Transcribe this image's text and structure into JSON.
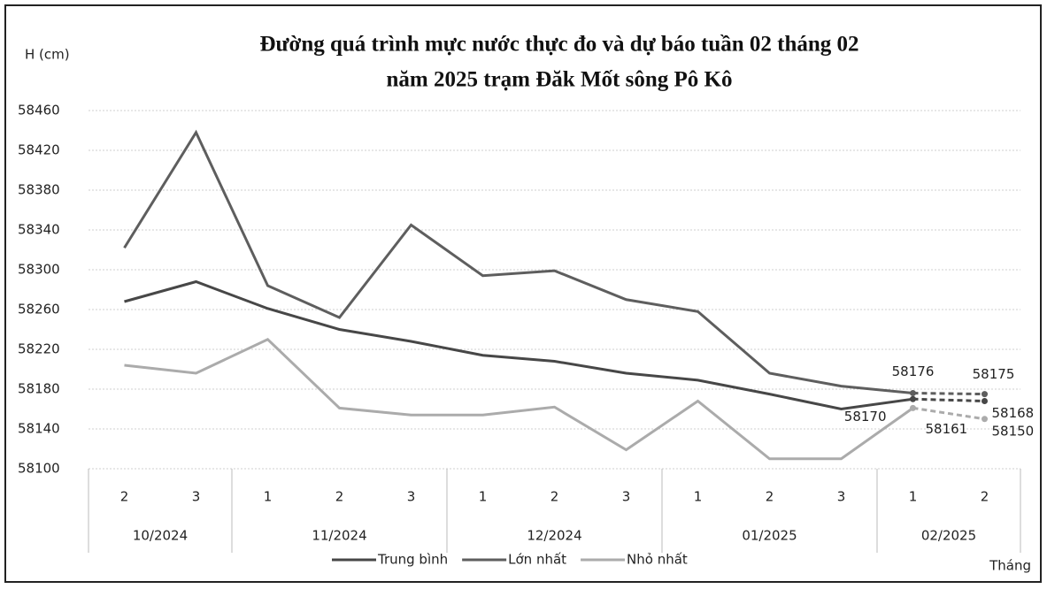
{
  "chart_data": {
    "type": "line",
    "title": [
      "Đường quá trình mực nước thực đo và dự báo tuần 02 tháng 02",
      "năm 2025 trạm Đăk Mốt sông Pô Kô"
    ],
    "y_label": "H (cm)",
    "x_label": "Tháng",
    "category_groups": [
      {
        "name": "10/2024",
        "categories": [
          "2",
          "3"
        ]
      },
      {
        "name": "11/2024",
        "categories": [
          "1",
          "2",
          "3"
        ]
      },
      {
        "name": "12/2024",
        "categories": [
          "1",
          "2",
          "3"
        ]
      },
      {
        "name": "01/2025",
        "categories": [
          "1",
          "2",
          "3"
        ]
      },
      {
        "name": "02/2025",
        "categories": [
          "1",
          "2"
        ]
      }
    ],
    "dashed_from": 11,
    "series": [
      {
        "name": "Trung bình",
        "color": "#474747",
        "values": [
          58268,
          58288,
          58261,
          58240,
          58228,
          58214,
          58208,
          58196,
          58189,
          58175,
          58160,
          58170,
          58168
        ]
      },
      {
        "name": "Lớn nhất",
        "color": "#5e5e5e",
        "values": [
          58322,
          58438,
          58284,
          58252,
          58345,
          58294,
          58299,
          58270,
          58258,
          58196,
          58183,
          58176,
          58175
        ]
      },
      {
        "name": "Nhỏ nhất",
        "color": "#ababab",
        "values": [
          58204,
          58196,
          58230,
          58161,
          58154,
          58154,
          58162,
          58119,
          58168,
          58110,
          58110,
          58161,
          58150
        ]
      }
    ],
    "ylim": [
      58100,
      58460
    ],
    "yticks": [
      58100,
      58140,
      58180,
      58220,
      58260,
      58300,
      58340,
      58380,
      58420,
      58460
    ],
    "grid": true
  }
}
